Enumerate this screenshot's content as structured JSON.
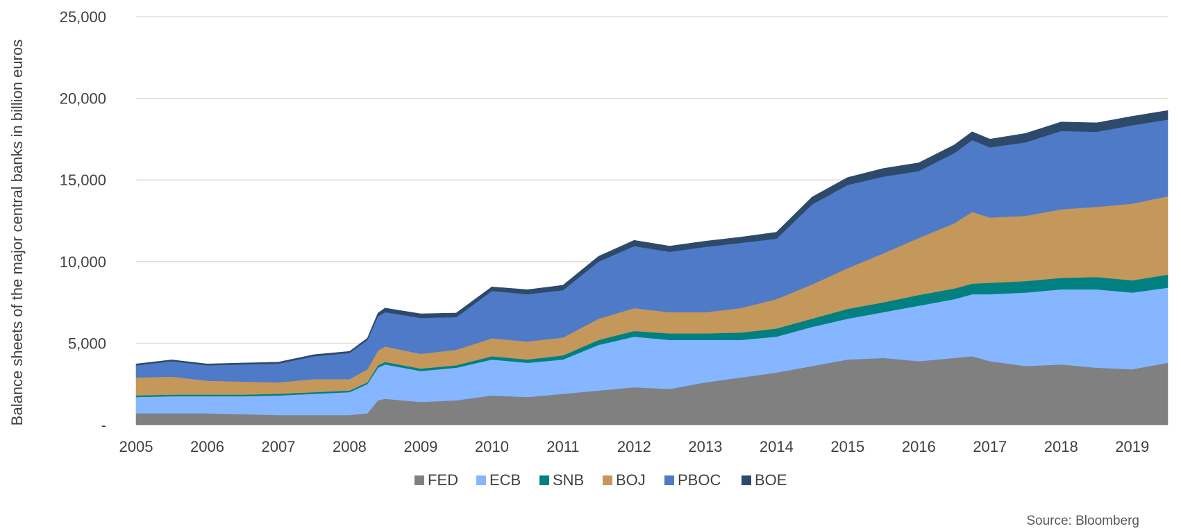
{
  "chart_data": {
    "type": "area",
    "stacked": true,
    "title": "",
    "ylabel": "Balance sheets of the major central banks in billion euros",
    "xlabel": "",
    "ylim": [
      0,
      25000
    ],
    "xlim": [
      2005.0,
      2019.5
    ],
    "y_ticks": [
      0,
      5000,
      10000,
      15000,
      20000,
      25000
    ],
    "y_tick_labels": [
      "-",
      "5,000",
      "10,000",
      "15,000",
      "20,000",
      "25,000"
    ],
    "x_tick_labels": [
      "2005",
      "2006",
      "2007",
      "2008",
      "2009",
      "2010",
      "2011",
      "2012",
      "2013",
      "2014",
      "2015",
      "2016",
      "2017",
      "2018",
      "2019"
    ],
    "grid": "horizontal",
    "legend_position": "bottom",
    "x": [
      2005.0,
      2005.5,
      2006.0,
      2006.5,
      2007.0,
      2007.5,
      2008.0,
      2008.25,
      2008.4,
      2008.5,
      2009.0,
      2009.5,
      2010.0,
      2010.5,
      2011.0,
      2011.5,
      2012.0,
      2012.5,
      2013.0,
      2013.5,
      2014.0,
      2014.5,
      2015.0,
      2015.5,
      2016.0,
      2016.5,
      2016.75,
      2017.0,
      2017.5,
      2018.0,
      2018.5,
      2019.0,
      2019.5
    ],
    "series": [
      {
        "name": "FED",
        "color": "#808080",
        "values": [
          700,
          700,
          700,
          650,
          600,
          600,
          600,
          700,
          1500,
          1600,
          1400,
          1500,
          1800,
          1700,
          1900,
          2100,
          2300,
          2200,
          2600,
          2900,
          3200,
          3600,
          4000,
          4100,
          3900,
          4100,
          4200,
          3900,
          3600,
          3700,
          3500,
          3400,
          3800
        ]
      },
      {
        "name": "ECB",
        "color": "#85b6ff",
        "values": [
          1000,
          1050,
          1050,
          1100,
          1200,
          1300,
          1400,
          1800,
          2000,
          2100,
          1900,
          2000,
          2200,
          2100,
          2100,
          2800,
          3100,
          3000,
          2600,
          2300,
          2200,
          2400,
          2500,
          2800,
          3400,
          3600,
          3800,
          4100,
          4500,
          4600,
          4800,
          4700,
          4600
        ]
      },
      {
        "name": "SNB",
        "color": "#008080",
        "values": [
          100,
          100,
          100,
          100,
          100,
          100,
          100,
          100,
          150,
          150,
          150,
          150,
          200,
          200,
          250,
          300,
          350,
          400,
          400,
          450,
          500,
          500,
          600,
          600,
          650,
          650,
          650,
          700,
          700,
          700,
          750,
          750,
          800
        ]
      },
      {
        "name": "BOJ",
        "color": "#c4975a",
        "values": [
          1100,
          1100,
          850,
          800,
          700,
          800,
          700,
          800,
          900,
          950,
          900,
          950,
          1100,
          1100,
          1100,
          1300,
          1400,
          1300,
          1300,
          1500,
          1800,
          2100,
          2500,
          3000,
          3500,
          4000,
          4400,
          4000,
          4000,
          4200,
          4300,
          4700,
          4800
        ]
      },
      {
        "name": "PBOC",
        "color": "#4f7ac7",
        "values": [
          750,
          950,
          950,
          1050,
          1150,
          1400,
          1600,
          1800,
          2100,
          2100,
          2200,
          2000,
          2900,
          2900,
          2900,
          3500,
          3800,
          3700,
          4000,
          4000,
          3700,
          4900,
          5100,
          4700,
          4100,
          4300,
          4400,
          4300,
          4500,
          4800,
          4600,
          4800,
          4700
        ]
      },
      {
        "name": "BOE",
        "color": "#2e4a6b",
        "values": [
          80,
          80,
          80,
          90,
          90,
          100,
          100,
          100,
          200,
          250,
          250,
          250,
          250,
          280,
          300,
          320,
          350,
          350,
          350,
          350,
          400,
          450,
          450,
          500,
          500,
          500,
          500,
          500,
          550,
          550,
          550,
          550,
          550
        ]
      }
    ],
    "source": "Source: Bloomberg"
  }
}
